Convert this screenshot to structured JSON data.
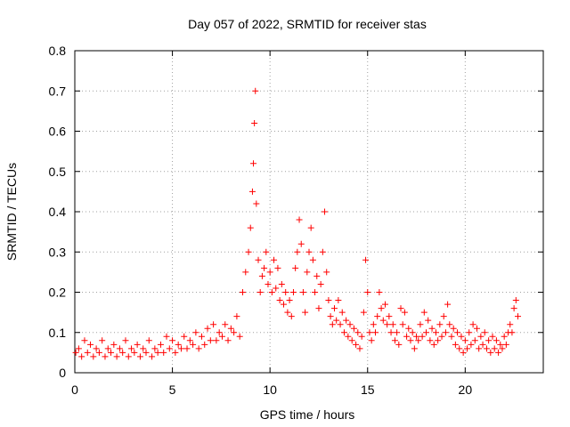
{
  "chart_data": {
    "type": "scatter",
    "title": "Day 057 of 2022, SRMTID for receiver stas",
    "xlabel": "GPS time / hours",
    "ylabel": "SRMTID / TECUs",
    "xlim": [
      0,
      24
    ],
    "ylim": [
      0,
      0.8
    ],
    "grid": true,
    "marker": "+",
    "color": "#ff0000",
    "xticks": [
      0,
      5,
      10,
      15,
      20
    ],
    "xtick_labels": [
      "0",
      "5",
      "10",
      "15",
      "20"
    ],
    "yticks": [
      0,
      0.1,
      0.2,
      0.3,
      0.4,
      0.5,
      0.6,
      0.7,
      0.8
    ],
    "ytick_labels": [
      "0",
      "0.1",
      "0.2",
      "0.3",
      "0.4",
      "0.5",
      "0.6",
      "0.7",
      "0.8"
    ],
    "series": [
      {
        "name": "SRMTID",
        "points": [
          [
            0.05,
            0.05
          ],
          [
            0.2,
            0.06
          ],
          [
            0.35,
            0.04
          ],
          [
            0.5,
            0.08
          ],
          [
            0.65,
            0.05
          ],
          [
            0.8,
            0.07
          ],
          [
            0.95,
            0.04
          ],
          [
            1.1,
            0.06
          ],
          [
            1.25,
            0.05
          ],
          [
            1.4,
            0.08
          ],
          [
            1.55,
            0.04
          ],
          [
            1.7,
            0.06
          ],
          [
            1.85,
            0.05
          ],
          [
            2.0,
            0.07
          ],
          [
            2.15,
            0.04
          ],
          [
            2.3,
            0.06
          ],
          [
            2.45,
            0.05
          ],
          [
            2.6,
            0.08
          ],
          [
            2.75,
            0.04
          ],
          [
            2.9,
            0.06
          ],
          [
            3.05,
            0.05
          ],
          [
            3.2,
            0.07
          ],
          [
            3.35,
            0.04
          ],
          [
            3.5,
            0.06
          ],
          [
            3.65,
            0.05
          ],
          [
            3.8,
            0.08
          ],
          [
            3.95,
            0.04
          ],
          [
            4.1,
            0.06
          ],
          [
            4.25,
            0.05
          ],
          [
            4.4,
            0.07
          ],
          [
            4.55,
            0.05
          ],
          [
            4.7,
            0.09
          ],
          [
            4.85,
            0.06
          ],
          [
            5.0,
            0.08
          ],
          [
            5.15,
            0.05
          ],
          [
            5.3,
            0.07
          ],
          [
            5.45,
            0.06
          ],
          [
            5.6,
            0.09
          ],
          [
            5.75,
            0.06
          ],
          [
            5.9,
            0.08
          ],
          [
            6.05,
            0.07
          ],
          [
            6.2,
            0.1
          ],
          [
            6.35,
            0.06
          ],
          [
            6.5,
            0.09
          ],
          [
            6.65,
            0.07
          ],
          [
            6.8,
            0.11
          ],
          [
            6.95,
            0.08
          ],
          [
            7.1,
            0.12
          ],
          [
            7.25,
            0.08
          ],
          [
            7.4,
            0.1
          ],
          [
            7.55,
            0.09
          ],
          [
            7.7,
            0.12
          ],
          [
            7.85,
            0.08
          ],
          [
            8.0,
            0.11
          ],
          [
            8.15,
            0.1
          ],
          [
            8.3,
            0.14
          ],
          [
            8.45,
            0.09
          ],
          [
            8.6,
            0.2
          ],
          [
            8.75,
            0.25
          ],
          [
            8.9,
            0.3
          ],
          [
            9.0,
            0.36
          ],
          [
            9.1,
            0.45
          ],
          [
            9.15,
            0.52
          ],
          [
            9.2,
            0.62
          ],
          [
            9.25,
            0.7
          ],
          [
            9.3,
            0.42
          ],
          [
            9.4,
            0.28
          ],
          [
            9.5,
            0.2
          ],
          [
            9.6,
            0.24
          ],
          [
            9.7,
            0.26
          ],
          [
            9.8,
            0.3
          ],
          [
            9.9,
            0.22
          ],
          [
            10.0,
            0.25
          ],
          [
            10.1,
            0.2
          ],
          [
            10.2,
            0.28
          ],
          [
            10.3,
            0.21
          ],
          [
            10.4,
            0.26
          ],
          [
            10.5,
            0.18
          ],
          [
            10.6,
            0.22
          ],
          [
            10.7,
            0.17
          ],
          [
            10.8,
            0.2
          ],
          [
            10.9,
            0.15
          ],
          [
            11.0,
            0.18
          ],
          [
            11.1,
            0.14
          ],
          [
            11.2,
            0.2
          ],
          [
            11.3,
            0.26
          ],
          [
            11.4,
            0.3
          ],
          [
            11.5,
            0.38
          ],
          [
            11.6,
            0.32
          ],
          [
            11.7,
            0.2
          ],
          [
            11.8,
            0.15
          ],
          [
            11.9,
            0.25
          ],
          [
            12.0,
            0.3
          ],
          [
            12.1,
            0.36
          ],
          [
            12.2,
            0.28
          ],
          [
            12.3,
            0.2
          ],
          [
            12.4,
            0.24
          ],
          [
            12.5,
            0.16
          ],
          [
            12.6,
            0.22
          ],
          [
            12.7,
            0.3
          ],
          [
            12.8,
            0.4
          ],
          [
            12.9,
            0.25
          ],
          [
            13.0,
            0.18
          ],
          [
            13.1,
            0.14
          ],
          [
            13.2,
            0.12
          ],
          [
            13.3,
            0.16
          ],
          [
            13.4,
            0.13
          ],
          [
            13.5,
            0.18
          ],
          [
            13.6,
            0.12
          ],
          [
            13.7,
            0.15
          ],
          [
            13.8,
            0.1
          ],
          [
            13.9,
            0.13
          ],
          [
            14.0,
            0.09
          ],
          [
            14.1,
            0.12
          ],
          [
            14.2,
            0.08
          ],
          [
            14.3,
            0.11
          ],
          [
            14.4,
            0.07
          ],
          [
            14.5,
            0.1
          ],
          [
            14.6,
            0.06
          ],
          [
            14.7,
            0.09
          ],
          [
            14.8,
            0.15
          ],
          [
            14.9,
            0.28
          ],
          [
            15.0,
            0.2
          ],
          [
            15.1,
            0.1
          ],
          [
            15.2,
            0.08
          ],
          [
            15.3,
            0.12
          ],
          [
            15.4,
            0.1
          ],
          [
            15.5,
            0.14
          ],
          [
            15.6,
            0.2
          ],
          [
            15.7,
            0.16
          ],
          [
            15.8,
            0.13
          ],
          [
            15.9,
            0.17
          ],
          [
            16.0,
            0.12
          ],
          [
            16.1,
            0.14
          ],
          [
            16.2,
            0.1
          ],
          [
            16.3,
            0.12
          ],
          [
            16.4,
            0.08
          ],
          [
            16.5,
            0.1
          ],
          [
            16.6,
            0.07
          ],
          [
            16.7,
            0.16
          ],
          [
            16.8,
            0.12
          ],
          [
            16.9,
            0.15
          ],
          [
            17.0,
            0.09
          ],
          [
            17.1,
            0.11
          ],
          [
            17.2,
            0.08
          ],
          [
            17.3,
            0.1
          ],
          [
            17.4,
            0.06
          ],
          [
            17.5,
            0.09
          ],
          [
            17.6,
            0.08
          ],
          [
            17.7,
            0.12
          ],
          [
            17.8,
            0.09
          ],
          [
            17.9,
            0.15
          ],
          [
            18.0,
            0.1
          ],
          [
            18.1,
            0.13
          ],
          [
            18.2,
            0.08
          ],
          [
            18.3,
            0.11
          ],
          [
            18.4,
            0.07
          ],
          [
            18.5,
            0.1
          ],
          [
            18.6,
            0.08
          ],
          [
            18.7,
            0.12
          ],
          [
            18.8,
            0.09
          ],
          [
            18.9,
            0.14
          ],
          [
            19.0,
            0.1
          ],
          [
            19.1,
            0.17
          ],
          [
            19.2,
            0.12
          ],
          [
            19.3,
            0.09
          ],
          [
            19.4,
            0.11
          ],
          [
            19.5,
            0.07
          ],
          [
            19.6,
            0.1
          ],
          [
            19.7,
            0.06
          ],
          [
            19.8,
            0.09
          ],
          [
            19.9,
            0.05
          ],
          [
            20.0,
            0.08
          ],
          [
            20.1,
            0.06
          ],
          [
            20.2,
            0.1
          ],
          [
            20.3,
            0.07
          ],
          [
            20.4,
            0.12
          ],
          [
            20.5,
            0.08
          ],
          [
            20.6,
            0.11
          ],
          [
            20.7,
            0.06
          ],
          [
            20.8,
            0.09
          ],
          [
            20.9,
            0.07
          ],
          [
            21.0,
            0.1
          ],
          [
            21.1,
            0.06
          ],
          [
            21.2,
            0.08
          ],
          [
            21.3,
            0.05
          ],
          [
            21.4,
            0.09
          ],
          [
            21.5,
            0.06
          ],
          [
            21.6,
            0.08
          ],
          [
            21.7,
            0.05
          ],
          [
            21.8,
            0.07
          ],
          [
            21.9,
            0.06
          ],
          [
            22.0,
            0.09
          ],
          [
            22.1,
            0.07
          ],
          [
            22.2,
            0.1
          ],
          [
            22.3,
            0.12
          ],
          [
            22.4,
            0.1
          ],
          [
            22.5,
            0.16
          ],
          [
            22.6,
            0.18
          ],
          [
            22.7,
            0.14
          ]
        ]
      }
    ]
  }
}
